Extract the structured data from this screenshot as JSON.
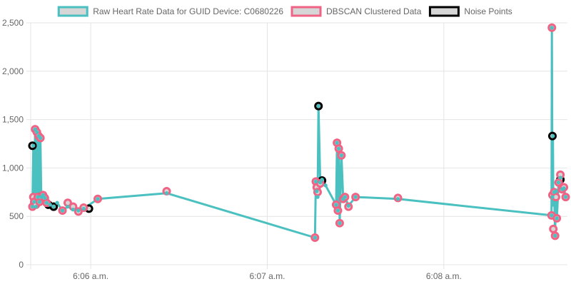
{
  "chart_data": {
    "type": "line",
    "legend_position": "top",
    "colors": {
      "raw_line": "#4bc0c0",
      "cluster_border": "#f06384",
      "noise_border": "#000000",
      "point_fill": "#d6d6d6",
      "grid": "#e4e4e4",
      "tick_text": "#666666"
    },
    "ylim": [
      0,
      2500
    ],
    "y_ticks": [
      {
        "value": 0,
        "label": "0"
      },
      {
        "value": 500,
        "label": "500"
      },
      {
        "value": 1000,
        "label": "1,000"
      },
      {
        "value": 1500,
        "label": "1,500"
      },
      {
        "value": 2000,
        "label": "2,000"
      },
      {
        "value": 2500,
        "label": "2,500"
      }
    ],
    "x_range_minutes": [
      5.66,
      8.7
    ],
    "x_ticks": [
      {
        "minute": 6.0,
        "label": "6:06 a.m."
      },
      {
        "minute": 7.0,
        "label": "6:07 a.m."
      },
      {
        "minute": 8.0,
        "label": "6:08 a.m."
      }
    ],
    "series": [
      {
        "name": "Raw Heart Rate Data for GUID Device: C0680226",
        "style": "line",
        "x": [
          5.67,
          5.675,
          5.68,
          5.685,
          5.69,
          5.695,
          5.7,
          5.705,
          5.71,
          5.715,
          5.72,
          5.73,
          5.74,
          5.75,
          5.77,
          5.79,
          5.81,
          5.84,
          5.87,
          5.9,
          5.93,
          5.96,
          6.04,
          6.43,
          7.27,
          7.275,
          7.28,
          7.285,
          7.29,
          7.3,
          7.31,
          7.33,
          7.39,
          7.395,
          7.4,
          7.405,
          7.41,
          7.42,
          7.43,
          7.44,
          7.46,
          7.5,
          7.74,
          8.61,
          8.612,
          8.615,
          8.618,
          8.62,
          8.625,
          8.63,
          8.635,
          8.64,
          8.65,
          8.66,
          8.67,
          8.68,
          8.69
        ],
        "values": [
          600,
          1230,
          650,
          1400,
          600,
          1370,
          700,
          1330,
          650,
          1310,
          700,
          720,
          690,
          640,
          620,
          600,
          640,
          560,
          600,
          570,
          560,
          580,
          680,
          740,
          280,
          860,
          760,
          700,
          1640,
          850,
          880,
          820,
          620,
          1260,
          560,
          1200,
          430,
          1130,
          680,
          700,
          610,
          700,
          680,
          510,
          2450,
          700,
          1330,
          620,
          750,
          300,
          760,
          480,
          850,
          900,
          780,
          790,
          700
        ]
      },
      {
        "name": "DBSCAN Clustered Data",
        "style": "points",
        "x": [
          5.67,
          5.675,
          5.68,
          5.685,
          5.69,
          5.695,
          5.7,
          5.705,
          5.71,
          5.715,
          5.72,
          5.73,
          5.74,
          5.75,
          5.84,
          5.87,
          5.9,
          5.93,
          5.96,
          6.04,
          6.43,
          7.27,
          7.275,
          7.28,
          7.285,
          7.3,
          7.39,
          7.395,
          7.4,
          7.405,
          7.41,
          7.42,
          7.43,
          7.44,
          7.46,
          7.5,
          7.74,
          8.61,
          8.612,
          8.615,
          8.62,
          8.625,
          8.63,
          8.635,
          8.64,
          8.65,
          8.66,
          8.67,
          8.68,
          8.69
        ],
        "values": [
          600,
          700,
          650,
          1400,
          620,
          1370,
          700,
          1330,
          650,
          1310,
          700,
          720,
          690,
          640,
          560,
          640,
          600,
          550,
          590,
          680,
          760,
          280,
          860,
          800,
          750,
          840,
          620,
          1260,
          560,
          1200,
          430,
          1130,
          680,
          700,
          600,
          700,
          690,
          510,
          2450,
          720,
          370,
          750,
          300,
          700,
          480,
          850,
          930,
          780,
          800,
          700
        ]
      },
      {
        "name": "Noise Points",
        "style": "points",
        "x": [
          5.67,
          5.71,
          5.76,
          5.79,
          5.99,
          7.29,
          7.31,
          8.615,
          8.66
        ],
        "values": [
          1230,
          700,
          620,
          600,
          580,
          1640,
          870,
          1330,
          880
        ]
      }
    ]
  }
}
